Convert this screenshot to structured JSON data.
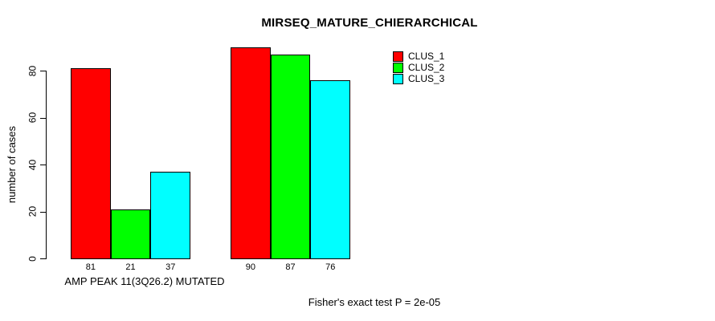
{
  "chart_data": {
    "type": "bar",
    "title": "MIRSEQ_MATURE_CHIERARCHICAL",
    "xlabel": "",
    "ylabel": "number of cases",
    "ylim": [
      0,
      90
    ],
    "yticks": [
      0,
      20,
      40,
      60,
      80
    ],
    "grid": false,
    "legend_position": "top-right",
    "bar_value_labels": true,
    "categories": [
      "AMP PEAK 11(3Q26.2) MUTATED",
      ""
    ],
    "series": [
      {
        "name": "CLUS_1",
        "color": "#FF0000",
        "values": [
          81,
          90
        ]
      },
      {
        "name": "CLUS_2",
        "color": "#00FF00",
        "values": [
          21,
          87
        ]
      },
      {
        "name": "CLUS_3",
        "color": "#00FFFF",
        "values": [
          37,
          76
        ]
      }
    ],
    "annotation": "Fisher's exact test P = 2e-05"
  }
}
